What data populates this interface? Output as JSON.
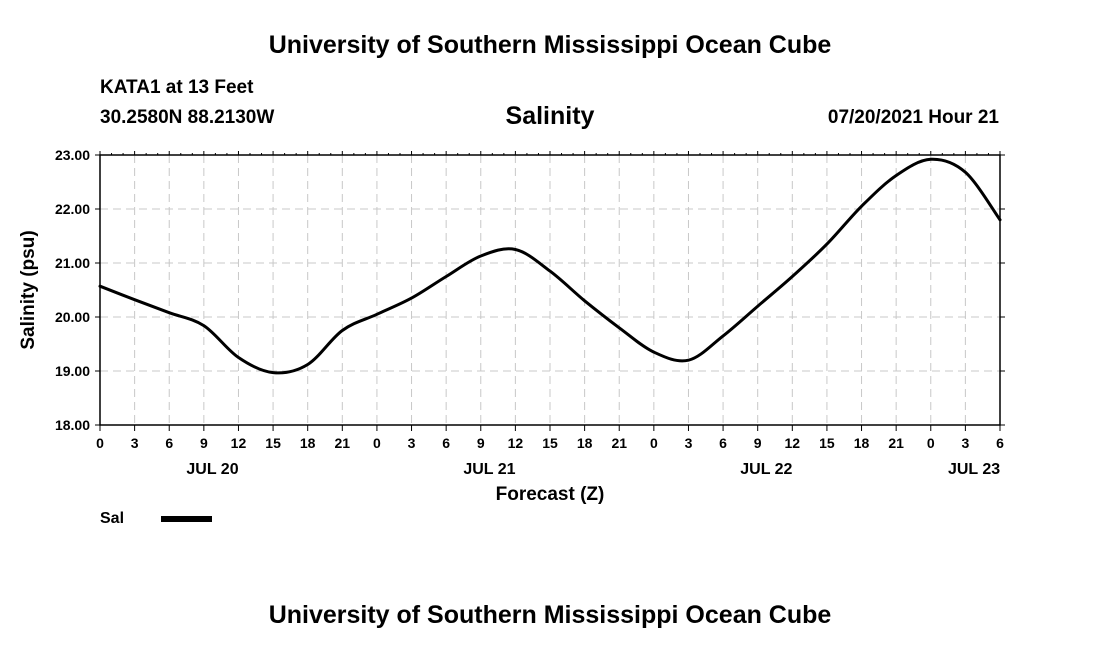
{
  "header": {
    "title": "University of Southern Mississippi Ocean Cube",
    "station": "KATA1 at 13 Feet",
    "coords": "30.2580N  88.2130W",
    "variable": "Salinity",
    "datetime": "07/20/2021 Hour 21"
  },
  "footer": {
    "title": "University of Southern Mississippi Ocean Cube"
  },
  "legend": {
    "label": "Sal"
  },
  "chart_data": {
    "type": "line",
    "title": "Salinity",
    "xlabel": "Forecast (Z)",
    "ylabel": "Salinity (psu)",
    "xlim": [
      0,
      78
    ],
    "ylim": [
      18,
      23
    ],
    "grid": true,
    "y_ticks": [
      "18.00",
      "19.00",
      "20.00",
      "21.00",
      "22.00",
      "23.00"
    ],
    "x_tick_labels": [
      "0",
      "3",
      "6",
      "9",
      "12",
      "15",
      "18",
      "21",
      "0",
      "3",
      "6",
      "9",
      "12",
      "15",
      "18",
      "21",
      "0",
      "3",
      "6",
      "9",
      "12",
      "15",
      "18",
      "21",
      "0",
      "3",
      "6"
    ],
    "day_labels": [
      {
        "label": "JUL 20",
        "hour": 9.75
      },
      {
        "label": "JUL 21",
        "hour": 33.75
      },
      {
        "label": "JUL 22",
        "hour": 57.75
      },
      {
        "label": "JUL 23",
        "hour": 75.75
      }
    ],
    "series": [
      {
        "name": "Sal",
        "x": [
          0,
          3,
          6,
          9,
          12,
          15,
          18,
          21,
          24,
          27,
          30,
          33,
          36,
          39,
          42,
          45,
          48,
          51,
          54,
          57,
          60,
          63,
          66,
          69,
          72,
          75,
          78
        ],
        "y": [
          20.57,
          20.32,
          20.08,
          19.84,
          19.25,
          18.97,
          19.12,
          19.75,
          20.05,
          20.35,
          20.75,
          21.13,
          21.25,
          20.85,
          20.3,
          19.8,
          19.35,
          19.2,
          19.65,
          20.2,
          20.75,
          21.35,
          22.05,
          22.62,
          22.92,
          22.68,
          21.8
        ]
      }
    ]
  }
}
